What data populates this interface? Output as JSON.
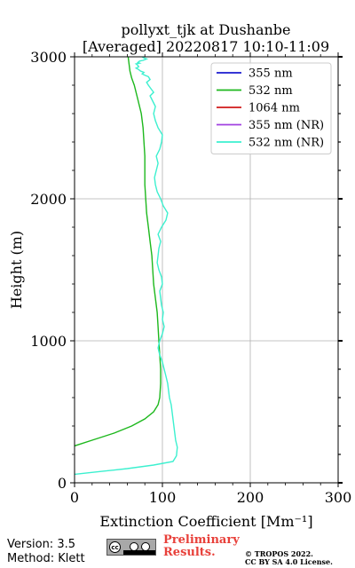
{
  "title_line1": "pollyxt_tjk at Dushanbe",
  "title_line2": "[Averaged] 20220817 10:10-11:09",
  "footer": {
    "version": "Version: 3.5",
    "method": "Method: Klett",
    "preliminary_line1": "Preliminary",
    "preliminary_line2": "Results.",
    "copyright_line1": "© TROPOS 2022.",
    "copyright_line2": "CC BY SA 4.0 License.",
    "preliminary_color": "#e8403a",
    "badge": "cc-by-sa-badge"
  },
  "chart_data": {
    "type": "line",
    "xlabel": "Extinction Coefficient [Mm⁻¹]",
    "ylabel": "Height (m)",
    "xlim": [
      0,
      300
    ],
    "ylim": [
      0,
      3000
    ],
    "xticks": [
      "0",
      "100",
      "200",
      "300"
    ],
    "yticks": [
      "0",
      "1000",
      "2000",
      "3000"
    ],
    "grid": true,
    "legend_position": "top-right",
    "series": [
      {
        "name": "355 nm",
        "color": "#1a1acf",
        "x": [],
        "y": []
      },
      {
        "name": "532 nm",
        "color": "#1db81d",
        "x": [
          0,
          20,
          45,
          65,
          80,
          90,
          95,
          97,
          98,
          98,
          97,
          96,
          95,
          94,
          92,
          90,
          89,
          88,
          86,
          84,
          82,
          81,
          80,
          80,
          80,
          79,
          78,
          76,
          72,
          68,
          65,
          63,
          61
        ],
        "y": [
          260,
          300,
          350,
          400,
          450,
          500,
          550,
          600,
          700,
          800,
          900,
          1000,
          1100,
          1200,
          1300,
          1400,
          1500,
          1600,
          1700,
          1800,
          1900,
          2000,
          2100,
          2200,
          2300,
          2400,
          2500,
          2600,
          2700,
          2800,
          2850,
          2900,
          3000
        ]
      },
      {
        "name": "1064 nm",
        "color": "#d11a1a",
        "x": [],
        "y": []
      },
      {
        "name": "355 nm (NR)",
        "color": "#a040e0",
        "x": [],
        "y": []
      },
      {
        "name": "532 nm (NR)",
        "color": "#3cf0cf",
        "x": [
          0,
          30,
          60,
          90,
          112,
          116,
          117,
          115,
          114,
          113,
          112,
          111,
          110,
          108,
          107,
          106,
          104,
          102,
          100,
          97,
          95,
          97,
          100,
          102,
          100,
          101,
          99,
          98,
          97,
          100,
          99,
          96,
          94,
          95,
          96,
          98,
          95,
          99,
          104,
          106,
          101,
          98,
          94,
          92,
          91,
          93,
          95,
          93,
          97,
          99,
          100,
          95,
          92,
          90,
          92,
          88,
          86,
          90,
          87,
          84,
          82,
          86,
          84,
          80,
          77,
          79,
          75,
          73,
          70,
          73,
          72,
          70,
          74,
          72,
          74,
          78,
          80,
          82,
          80,
          78,
          77
        ],
        "y": [
          60,
          80,
          100,
          125,
          150,
          190,
          250,
          300,
          350,
          400,
          450,
          500,
          550,
          600,
          650,
          700,
          750,
          800,
          850,
          900,
          950,
          1000,
          1050,
          1100,
          1150,
          1200,
          1250,
          1300,
          1350,
          1400,
          1450,
          1500,
          1550,
          1600,
          1650,
          1700,
          1750,
          1800,
          1850,
          1900,
          1950,
          2000,
          2050,
          2100,
          2150,
          2200,
          2250,
          2300,
          2350,
          2400,
          2450,
          2500,
          2550,
          2600,
          2650,
          2700,
          2725,
          2750,
          2775,
          2800,
          2820,
          2840,
          2860,
          2870,
          2880,
          2890,
          2900,
          2910,
          2920,
          2930,
          2940,
          2950,
          2955,
          2960,
          2970,
          2975,
          2980,
          2985,
          2990,
          2995,
          3000
        ]
      }
    ]
  }
}
